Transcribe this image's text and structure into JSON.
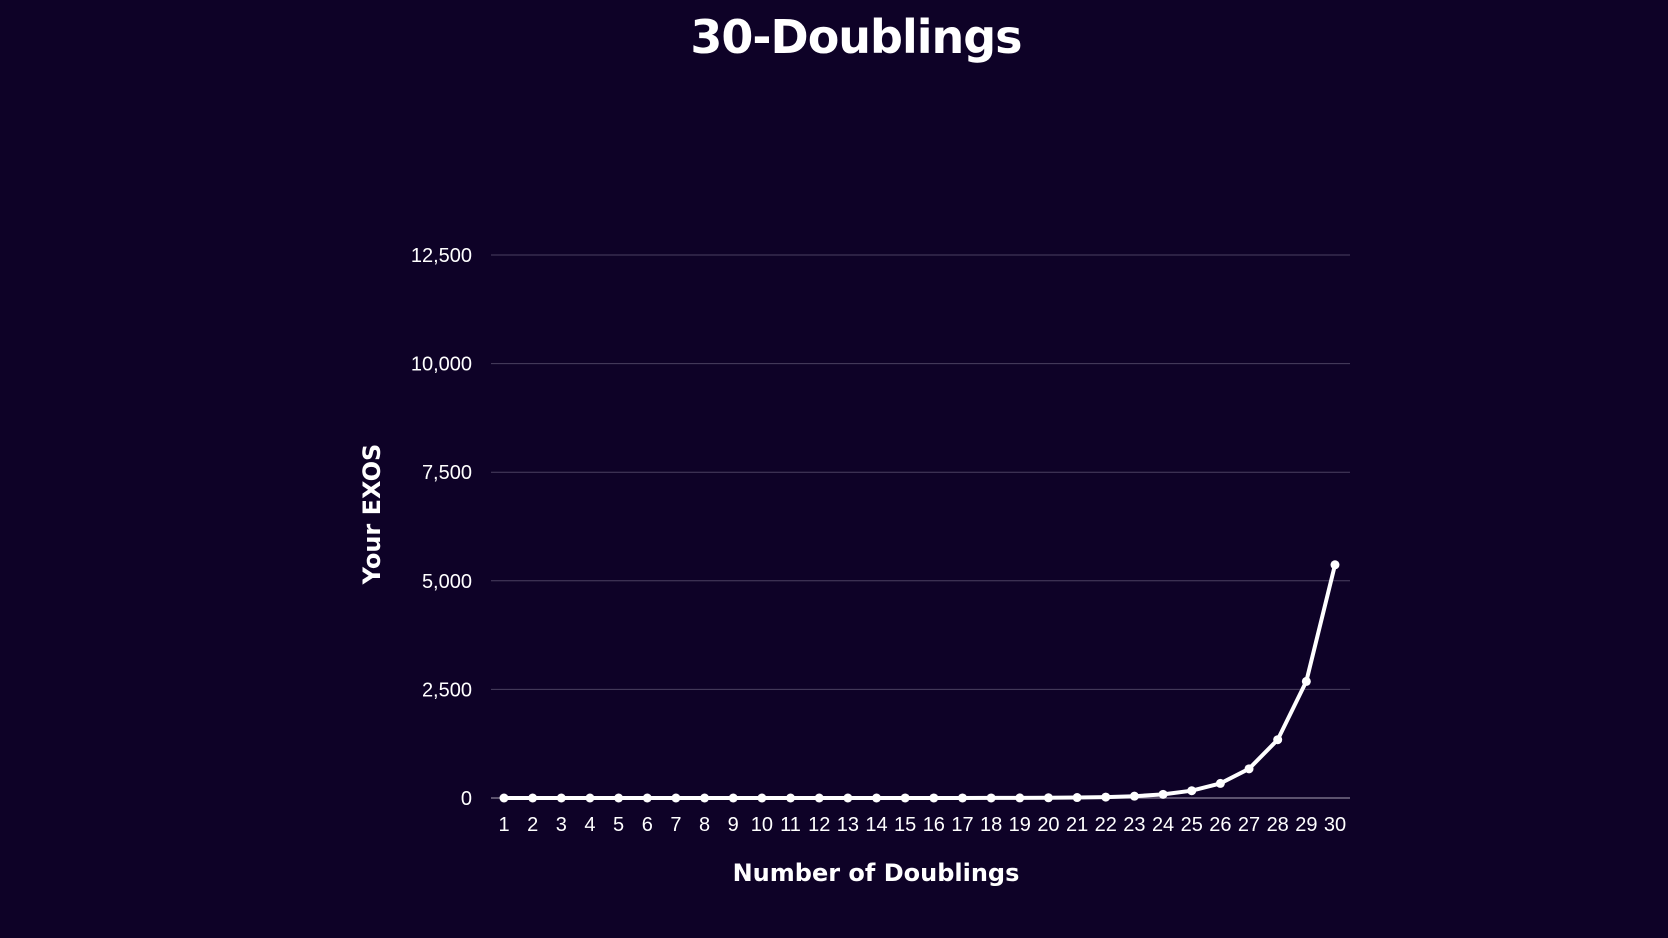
{
  "chart_data": {
    "type": "line",
    "title": "30-Doublings",
    "xlabel": "Number of Doublings",
    "ylabel": "Your EXOS",
    "x": [
      1,
      2,
      3,
      4,
      5,
      6,
      7,
      8,
      9,
      10,
      11,
      12,
      13,
      14,
      15,
      16,
      17,
      18,
      19,
      20,
      21,
      22,
      23,
      24,
      25,
      26,
      27,
      28,
      29,
      30
    ],
    "series": [
      {
        "values": [
          1e-05,
          2e-05,
          4e-05,
          8e-05,
          0.00016,
          0.00032,
          0.00064,
          0.00128,
          0.00256,
          0.00512,
          0.01024,
          0.02048,
          0.04096,
          0.08192,
          0.16384,
          0.32768,
          0.65536,
          1.31,
          2.62,
          5.24,
          10.49,
          20.97,
          41.94,
          83.89,
          167.77,
          335.54,
          671.09,
          1342.18,
          2684.35,
          5368.71
        ],
        "color": "#ffffff"
      }
    ],
    "y_ticks": [
      "0",
      "2,500",
      "5,000",
      "7,500",
      "10,000",
      "12,500"
    ],
    "ylim": [
      0,
      12500
    ],
    "grid": true,
    "legend": "none",
    "colors": {
      "background": "#0e0227",
      "line": "#ffffff",
      "grid": "#4a4060"
    }
  }
}
